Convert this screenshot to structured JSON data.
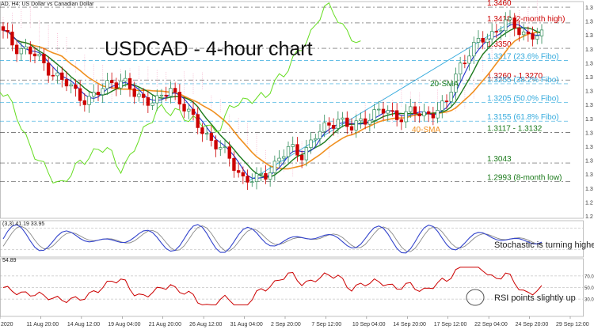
{
  "header": {
    "window_title": "AD, H4: US Dollar vs Canadian Dollar",
    "main_title": "USDCAD - 4-hour chart"
  },
  "colors": {
    "bull_candle": "#2e8b57",
    "bear_candle": "#cc0000",
    "sma20": "#1b7a1b",
    "sma40": "#f09020",
    "fast_line": "#2233cc",
    "lagging_span": "#66dd22",
    "cloud": "#f4a0c0",
    "fibo_line": "#33aadd",
    "red_level": "#cc0000",
    "stoch_main": "#3344cc",
    "stoch_signal": "#888888",
    "rsi": "#cc0000"
  },
  "chart_data": [
    {
      "type": "candlestick",
      "title": "USDCAD - 4-hour chart",
      "ylim": [
        1.2895,
        1.3475
      ],
      "x_tick_labels": [
        "2020",
        "11 Aug 20:00",
        "14 Aug 12:00",
        "19 Aug 04:00",
        "21 Aug 20:00",
        "26 Aug 12:00",
        "31 Aug 04:00",
        "2 Sep 20:00",
        "7 Sep 12:00",
        "10 Sep 04:00",
        "14 Sep 20:00",
        "17 Sep 12:00",
        "22 Sep 04:00",
        "24 Sep 20:00",
        "29 Sep 12:00"
      ],
      "price_axis_labels": [
        "1.3",
        "1.3",
        "1.3",
        "1.3",
        "1.3",
        "1.3",
        "1.3",
        "1.3",
        "1.3",
        "1.3",
        "1.3",
        "1.3",
        "1.3",
        "1.3",
        "1.2",
        "1.2"
      ],
      "price_path": [
        1.339,
        1.3355,
        1.3345,
        1.332,
        1.329,
        1.326,
        1.3235,
        1.321,
        1.323,
        1.3265,
        1.326,
        1.3225,
        1.3215,
        1.3205,
        1.3245,
        1.32,
        1.315,
        1.312,
        1.3085,
        1.305,
        1.3005,
        1.2993,
        1.3015,
        1.3055,
        1.308,
        1.3068,
        1.311,
        1.314,
        1.3165,
        1.313,
        1.316,
        1.3175,
        1.3182,
        1.3168,
        1.3178,
        1.3172,
        1.3182,
        1.3195,
        1.33,
        1.334,
        1.3372,
        1.3395,
        1.3418,
        1.3402,
        1.3385,
        1.338
      ],
      "levels": [
        {
          "label": "1.3460",
          "value": 1.346,
          "color": "#cc0000"
        },
        {
          "label": "1.3418 (2-month high)",
          "value": 1.3418,
          "color": "#cc0000"
        },
        {
          "label": "1.3350",
          "value": 1.335,
          "color": "#cc0000"
        },
        {
          "label": "1.3317 (23.6% Fibo)",
          "value": 1.3317,
          "color": "#33aadd"
        },
        {
          "label": "1.3260 - 1.3270",
          "value": 1.3265,
          "color": "#cc0000"
        },
        {
          "label": "1.3255 (38.2% Fibo)",
          "value": 1.3255,
          "color": "#33aadd"
        },
        {
          "label": "1.3205 (50.0% Fibo)",
          "value": 1.3205,
          "color": "#33aadd"
        },
        {
          "label": "1.3155 (61.8% Fibo)",
          "value": 1.3155,
          "color": "#33aadd"
        },
        {
          "label": "1.3117 - 1.3132",
          "value": 1.3125,
          "color": "#1b7a1b"
        },
        {
          "label": "1.3043",
          "value": 1.3043,
          "color": "#1b7a1b"
        },
        {
          "label": "1.2993 (8-month low)",
          "value": 1.2993,
          "color": "#1b7a1b"
        }
      ],
      "annotations": [
        "20-SMA",
        "40-SMA"
      ]
    },
    {
      "type": "line",
      "name": "Stochastic",
      "header": "(3,3) 41.19 33.95",
      "annotation": "Stochastic is turning higher",
      "ylim": [
        0,
        100
      ]
    },
    {
      "type": "line",
      "name": "RSI",
      "header": "54.89",
      "annotation": "RSI points slightly up",
      "ylim": [
        0,
        100
      ],
      "axis_labels": [
        "70.0",
        "50.0",
        "30.0"
      ]
    }
  ]
}
